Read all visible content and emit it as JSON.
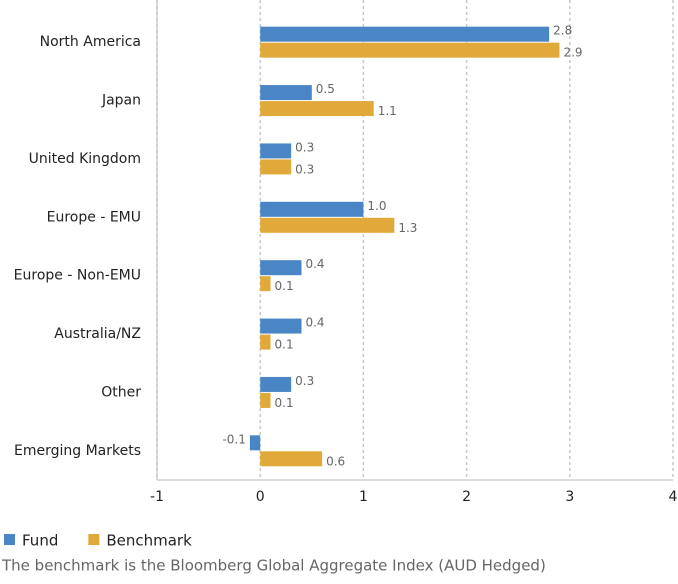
{
  "chart_data": {
    "type": "hbar",
    "categories": [
      "North America",
      "Japan",
      "United Kingdom",
      "Europe - EMU",
      "Europe - Non-EMU",
      "Australia/NZ",
      "Other",
      "Emerging Markets"
    ],
    "series": [
      {
        "name": "Fund",
        "color": "#4a86c5",
        "values": [
          2.8,
          0.5,
          0.3,
          1,
          0.4,
          0.4,
          0.3,
          -0.1
        ],
        "value_labels": [
          "2.8",
          "0.5",
          "0.3",
          "1.0",
          "0.4",
          "0.4",
          "0.3",
          "-0.1"
        ]
      },
      {
        "name": "Benchmark",
        "color": "#e0a93a",
        "values": [
          2.9,
          1.1,
          0.3,
          1.3,
          0.1,
          0.1,
          0.1,
          0.6
        ],
        "value_labels": [
          "2.9",
          "1.1",
          "0.3",
          "1.3",
          "0.1",
          "0.1",
          "0.1",
          "0.6"
        ]
      }
    ],
    "xlim": [
      -1,
      4
    ],
    "xticks": [
      -1,
      0,
      1,
      2,
      3,
      4
    ],
    "grid": true,
    "note": "The benchmark is the Bloomberg Global Aggregate Index (AUD Hedged)"
  }
}
